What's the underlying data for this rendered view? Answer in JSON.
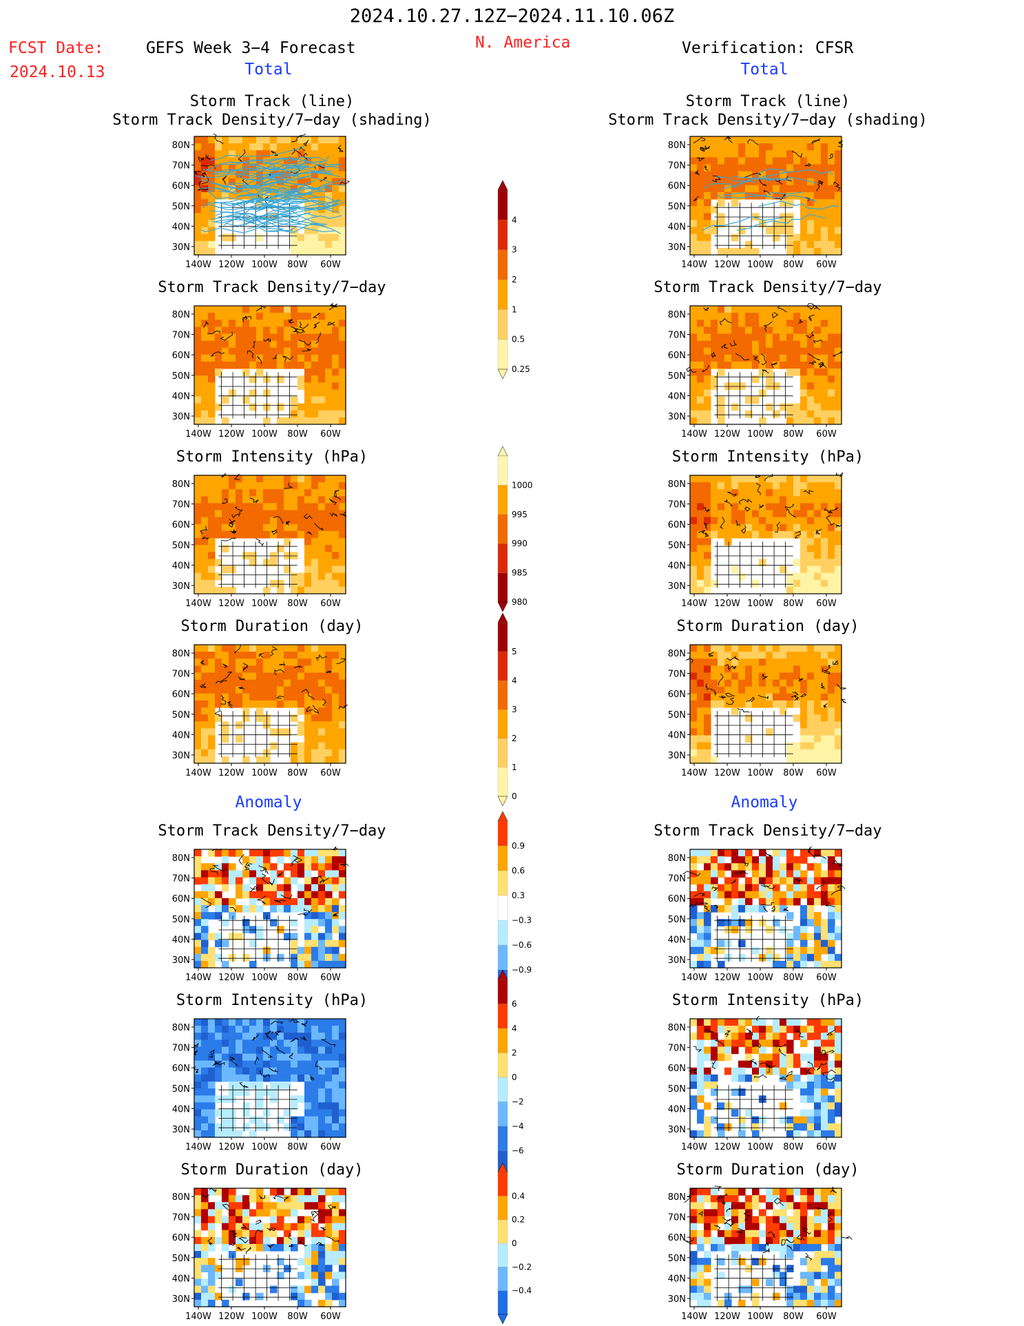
{
  "header": {
    "date_range": "2024.10.27.12Z−2024.11.10.06Z",
    "fcst_label": "FCST Date:",
    "fcst_date": "2024.10.13",
    "model_title": "GEFS Week 3−4 Forecast",
    "region": "N. America",
    "verification": "Verification: CFSR"
  },
  "sections": {
    "total_left": "Total",
    "total_right": "Total",
    "anomaly_left": "Anomaly",
    "anomaly_right": "Anomaly"
  },
  "panel_titles": {
    "track_line_1": "Storm Track (line)",
    "track_line_2": "Storm Track Density/7−day (shading)",
    "density": "Storm Track Density/7−day",
    "intensity": "Storm Intensity (hPa)",
    "duration": "Storm Duration (day)"
  },
  "axes": {
    "lat_labels": [
      "80N",
      "70N",
      "60N",
      "50N",
      "40N",
      "30N"
    ],
    "lon_labels": [
      "140W",
      "120W",
      "100W",
      "80W",
      "60W"
    ]
  },
  "colorbars": [
    {
      "name": "density-total",
      "labels": [
        "4",
        "3",
        "2",
        "1",
        "0.5",
        "0.25"
      ],
      "colors": [
        "#a00000",
        "#dc2a00",
        "#f26a00",
        "#ffa500",
        "#ffd060",
        "#fff3a6"
      ]
    },
    {
      "name": "intensity-total",
      "labels": [
        "1000",
        "995",
        "990",
        "985",
        "980"
      ],
      "colors": [
        "#fff5b0",
        "#ffa500",
        "#f26a00",
        "#dc2a00",
        "#a00000"
      ]
    },
    {
      "name": "duration-total",
      "labels": [
        "5",
        "4",
        "3",
        "2",
        "1",
        "0"
      ],
      "colors": [
        "#a00000",
        "#dc2a00",
        "#f26a00",
        "#ffa500",
        "#ffd060",
        "#fff3a6"
      ]
    },
    {
      "name": "density-anomaly",
      "labels": [
        "0.9",
        "0.6",
        "0.3",
        "−0.3",
        "−0.6",
        "−0.9"
      ],
      "colors": [
        "#ff3b00",
        "#ffa500",
        "#ffe070",
        "#ffffff",
        "#b6ecff",
        "#6cb8ff",
        "#1f6fe6"
      ]
    },
    {
      "name": "intensity-anomaly",
      "labels": [
        "6",
        "4",
        "2",
        "0",
        "−2",
        "−4",
        "−6"
      ],
      "colors": [
        "#b00000",
        "#ff3b00",
        "#ffa500",
        "#ffe070",
        "#b6ecff",
        "#6cb8ff",
        "#2b7be8",
        "#1f5fd0"
      ]
    },
    {
      "name": "duration-anomaly",
      "labels": [
        "0.4",
        "0.2",
        "0",
        "−0.2",
        "−0.4"
      ],
      "colors": [
        "#ff3b00",
        "#ffa500",
        "#ffe070",
        "#b6ecff",
        "#6cb8ff",
        "#1f6fe6"
      ]
    }
  ],
  "colors": {
    "title_red": "#ff2020",
    "section_blue": "#1a3cff",
    "track_line": "#3aa6d6"
  }
}
